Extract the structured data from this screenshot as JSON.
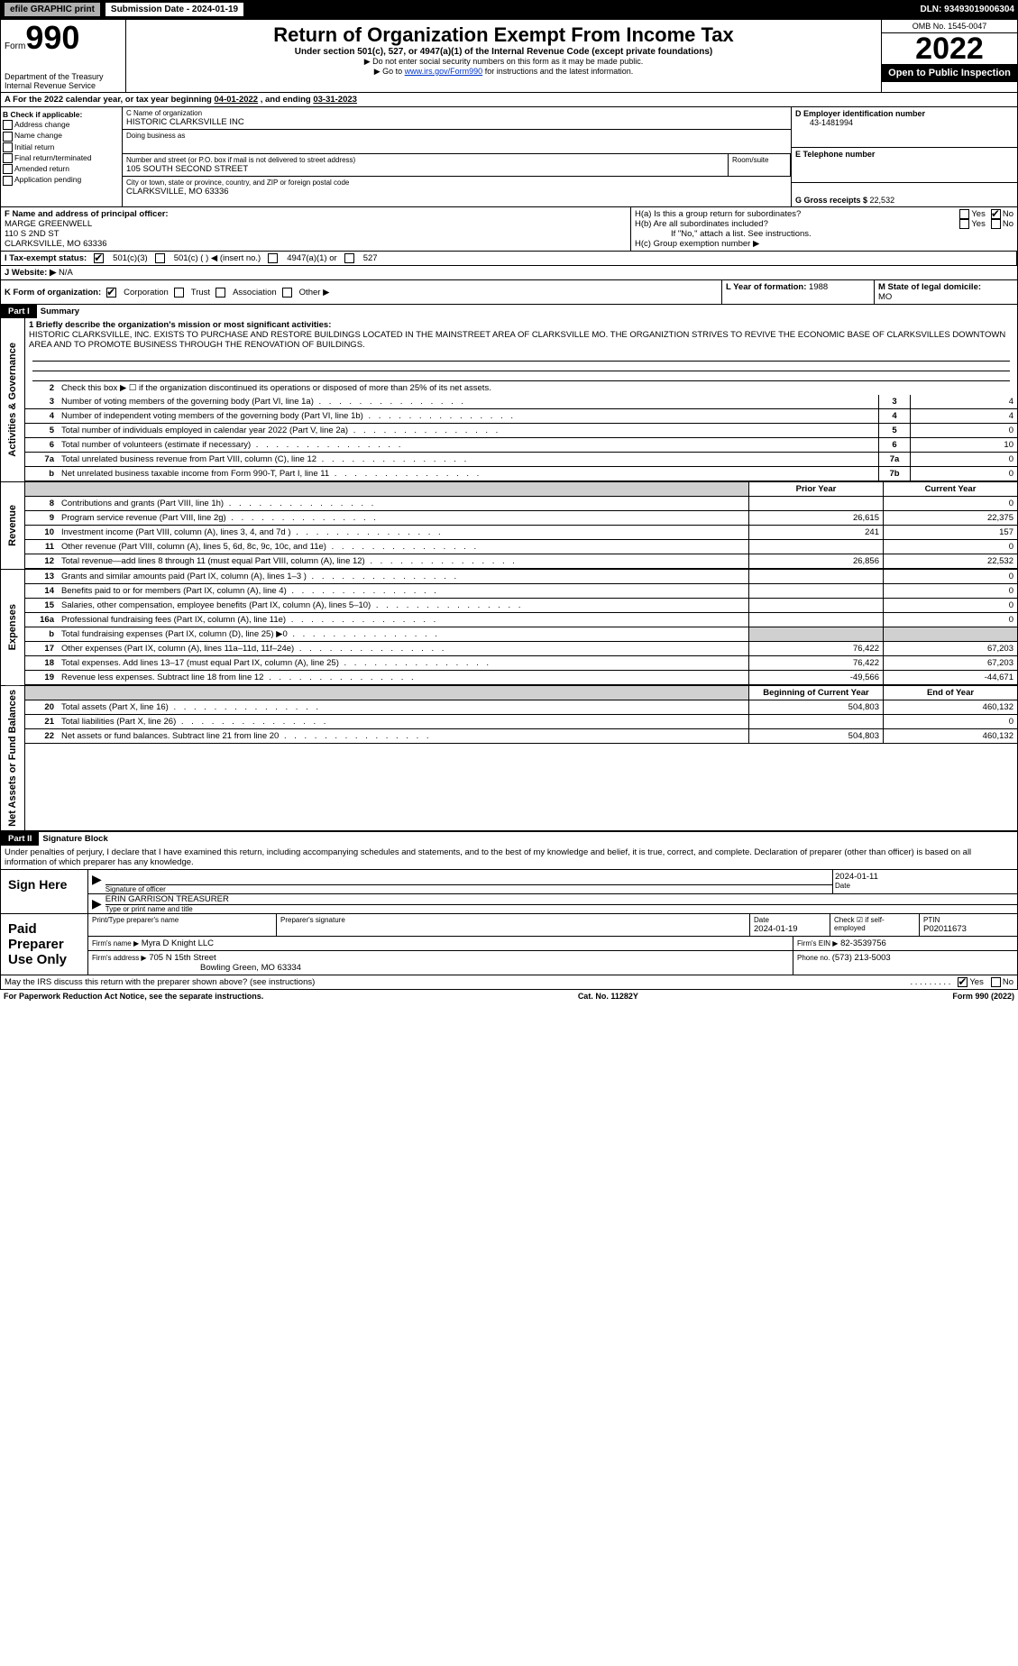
{
  "topbar": {
    "efile": "efile GRAPHIC print",
    "submission": "Submission Date - 2024-01-19",
    "dln": "DLN: 93493019006304"
  },
  "header": {
    "form_prefix": "Form",
    "form_num": "990",
    "title": "Return of Organization Exempt From Income Tax",
    "sub": "Under section 501(c), 527, or 4947(a)(1) of the Internal Revenue Code (except private foundations)",
    "note1": "▶ Do not enter social security numbers on this form as it may be made public.",
    "note2_pre": "▶ Go to ",
    "note2_link": "www.irs.gov/Form990",
    "note2_post": " for instructions and the latest information.",
    "dept": "Department of the Treasury",
    "irs": "Internal Revenue Service",
    "omb": "OMB No. 1545-0047",
    "year": "2022",
    "open": "Open to Public Inspection"
  },
  "a_line": {
    "label_a": "A",
    "text": "  For the 2022 calendar year, or tax year beginning ",
    "begin": "04-01-2022",
    "mid": "   , and ending ",
    "end": "03-31-2023"
  },
  "b": {
    "label": "B Check if applicable:",
    "items": [
      "Address change",
      "Name change",
      "Initial return",
      "Final return/terminated",
      "Amended return",
      "Application pending"
    ]
  },
  "c": {
    "label": "C Name of organization",
    "name": "HISTORIC CLARKSVILLE INC",
    "dba_label": "Doing business as",
    "addr_label": "Number and street (or P.O. box if mail is not delivered to street address)",
    "room_label": "Room/suite",
    "addr": "105 SOUTH SECOND STREET",
    "city_label": "City or town, state or province, country, and ZIP or foreign postal code",
    "city": "CLARKSVILLE, MO  63336"
  },
  "d": {
    "label": "D Employer identification number",
    "ein": "43-1481994"
  },
  "e": {
    "label": "E Telephone number",
    "phone": ""
  },
  "g": {
    "label": "G Gross receipts $ ",
    "val": "22,532"
  },
  "f": {
    "label": "F Name and address of principal officer:",
    "name": "MARGE GREENWELL",
    "addr": "110 S 2ND ST",
    "city": "CLARKSVILLE, MO  63336"
  },
  "h": {
    "a_label": "H(a)  Is this a group return for subordinates?",
    "b_label": "H(b)  Are all subordinates included?",
    "b_note": "If \"No,\" attach a list. See instructions.",
    "c_label": "H(c)  Group exemption number ▶",
    "yes": "Yes",
    "no": "No"
  },
  "i": {
    "label": "I     Tax-exempt status:",
    "opt1": "501(c)(3)",
    "opt2": "501(c) (    ) ◀ (insert no.)",
    "opt3": "4947(a)(1) or",
    "opt4": "527"
  },
  "j": {
    "label": "J    Website: ▶",
    "val": "  N/A"
  },
  "k": {
    "label": "K Form of organization:",
    "opts": [
      "Corporation",
      "Trust",
      "Association",
      "Other ▶"
    ]
  },
  "l": {
    "label": "L Year of formation: ",
    "val": "1988"
  },
  "m": {
    "label": "M State of legal domicile:",
    "val": "MO"
  },
  "part1": {
    "header": "Part I",
    "title": "Summary",
    "line1_label": "1  Briefly describe the organization's mission or most significant activities:",
    "mission": "HISTORIC CLARKSVILLE, INC. EXISTS TO PURCHASE AND RESTORE BUILDINGS LOCATED IN THE MAINSTREET AREA OF CLARKSVILLE MO. THE ORGANIZTION STRIVES TO REVIVE THE ECONOMIC BASE OF CLARKSVILLES DOWNTOWN AREA AND TO PROMOTE BUSINESS THROUGH THE RENOVATION OF BUILDINGS.",
    "line2": "Check this box ▶ ☐  if the organization discontinued its operations or disposed of more than 25% of its net assets."
  },
  "sidebars": {
    "gov": "Activities & Governance",
    "rev": "Revenue",
    "exp": "Expenses",
    "net": "Net Assets or Fund Balances"
  },
  "gov_rows": [
    {
      "n": "3",
      "label": "Number of voting members of the governing body (Part VI, line 1a)",
      "box": "3",
      "val": "4"
    },
    {
      "n": "4",
      "label": "Number of independent voting members of the governing body (Part VI, line 1b)",
      "box": "4",
      "val": "4"
    },
    {
      "n": "5",
      "label": "Total number of individuals employed in calendar year 2022 (Part V, line 2a)",
      "box": "5",
      "val": "0"
    },
    {
      "n": "6",
      "label": "Total number of volunteers (estimate if necessary)",
      "box": "6",
      "val": "10"
    },
    {
      "n": "7a",
      "label": "Total unrelated business revenue from Part VIII, column (C), line 12",
      "box": "7a",
      "val": "0"
    },
    {
      "n": "b",
      "label": "Net unrelated business taxable income from Form 990-T, Part I, line 11",
      "box": "7b",
      "val": "0"
    }
  ],
  "cols": {
    "prior": "Prior Year",
    "current": "Current Year",
    "begin": "Beginning of Current Year",
    "end": "End of Year"
  },
  "rev_rows": [
    {
      "n": "8",
      "label": "Contributions and grants (Part VIII, line 1h)",
      "prior": "",
      "cur": "0"
    },
    {
      "n": "9",
      "label": "Program service revenue (Part VIII, line 2g)",
      "prior": "26,615",
      "cur": "22,375"
    },
    {
      "n": "10",
      "label": "Investment income (Part VIII, column (A), lines 3, 4, and 7d )",
      "prior": "241",
      "cur": "157"
    },
    {
      "n": "11",
      "label": "Other revenue (Part VIII, column (A), lines 5, 6d, 8c, 9c, 10c, and 11e)",
      "prior": "",
      "cur": "0"
    },
    {
      "n": "12",
      "label": "Total revenue—add lines 8 through 11 (must equal Part VIII, column (A), line 12)",
      "prior": "26,856",
      "cur": "22,532"
    }
  ],
  "exp_rows": [
    {
      "n": "13",
      "label": "Grants and similar amounts paid (Part IX, column (A), lines 1–3 )",
      "prior": "",
      "cur": "0"
    },
    {
      "n": "14",
      "label": "Benefits paid to or for members (Part IX, column (A), line 4)",
      "prior": "",
      "cur": "0"
    },
    {
      "n": "15",
      "label": "Salaries, other compensation, employee benefits (Part IX, column (A), lines 5–10)",
      "prior": "",
      "cur": "0"
    },
    {
      "n": "16a",
      "label": "Professional fundraising fees (Part IX, column (A), line 11e)",
      "prior": "",
      "cur": "0"
    },
    {
      "n": "b",
      "label": "Total fundraising expenses (Part IX, column (D), line 25) ▶0",
      "prior": null,
      "cur": null
    },
    {
      "n": "17",
      "label": "Other expenses (Part IX, column (A), lines 11a–11d, 11f–24e)",
      "prior": "76,422",
      "cur": "67,203"
    },
    {
      "n": "18",
      "label": "Total expenses. Add lines 13–17 (must equal Part IX, column (A), line 25)",
      "prior": "76,422",
      "cur": "67,203"
    },
    {
      "n": "19",
      "label": "Revenue less expenses. Subtract line 18 from line 12",
      "prior": "-49,566",
      "cur": "-44,671"
    }
  ],
  "net_rows": [
    {
      "n": "20",
      "label": "Total assets (Part X, line 16)",
      "prior": "504,803",
      "cur": "460,132"
    },
    {
      "n": "21",
      "label": "Total liabilities (Part X, line 26)",
      "prior": "",
      "cur": "0"
    },
    {
      "n": "22",
      "label": "Net assets or fund balances. Subtract line 21 from line 20",
      "prior": "504,803",
      "cur": "460,132"
    }
  ],
  "part2": {
    "header": "Part II",
    "title": "Signature Block",
    "decl": "Under penalties of perjury, I declare that I have examined this return, including accompanying schedules and statements, and to the best of my knowledge and belief, it is true, correct, and complete. Declaration of preparer (other than officer) is based on all information of which preparer has any knowledge."
  },
  "sign": {
    "here_label": "Sign Here",
    "sig_label": "Signature of officer",
    "date_label": "Date",
    "date": "2024-01-11",
    "name": "ERIN GARRISON  TREASURER",
    "name_label": "Type or print name and title"
  },
  "paid": {
    "label": "Paid Preparer Use Only",
    "print_label": "Print/Type preparer's name",
    "sig_label": "Preparer's signature",
    "date_label": "Date",
    "date": "2024-01-19",
    "check_label": "Check ☑ if self-employed",
    "ptin_label": "PTIN",
    "ptin": "P02011673",
    "firm_name_label": "Firm's name     ▶",
    "firm_name": "Myra D Knight LLC",
    "firm_ein_label": "Firm's EIN ▶",
    "firm_ein": "82-3539756",
    "firm_addr_label": "Firm's address ▶",
    "firm_addr": "705 N 15th Street",
    "firm_city": "Bowling Green, MO  63334",
    "phone_label": "Phone no. ",
    "phone": "(573) 213-5003"
  },
  "discuss": {
    "text": "May the IRS discuss this return with the preparer shown above? (see instructions)",
    "yes": "Yes",
    "no": "No"
  },
  "footer": {
    "left": "For Paperwork Reduction Act Notice, see the separate instructions.",
    "mid": "Cat. No. 11282Y",
    "right_pre": "Form ",
    "right_num": "990",
    "right_post": " (2022)"
  }
}
